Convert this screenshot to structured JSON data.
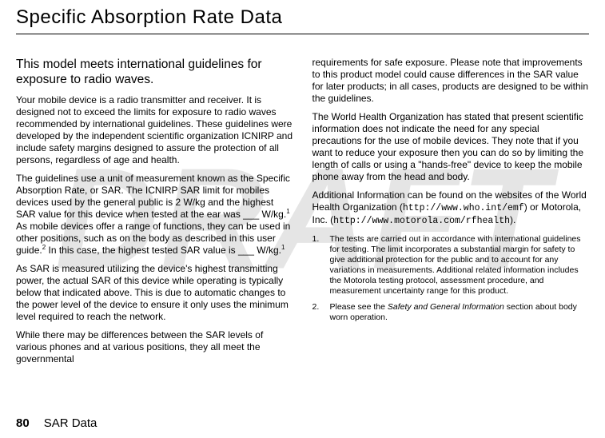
{
  "watermark": "DRAFT",
  "title": "Specific Absorption Rate Data",
  "left": {
    "subhead": "This model meets international guidelines for exposure to radio waves.",
    "p1": "Your mobile device is a radio transmitter and receiver. It is designed not to exceed the limits for exposure to radio waves recommended by international guidelines. These guidelines were developed by the independent scientific organization ICNIRP and include safety margins designed to assure the protection of all persons, regardless of age and health.",
    "p2a": "The guidelines use a unit of measurement known as the Specific Absorption Rate, or SAR. The ICNIRP SAR limit for mobiles devices used by the general public is 2 W/kg and the highest SAR value for this device when tested at the ear was ___ W/kg.",
    "p2b": " As mobile devices offer a range of functions, they can be used in other positions, such as on the body as described in this user guide.",
    "p2c": " In this case, the highest tested SAR value is ___ W/kg.",
    "p3": "As SAR is measured utilizing the device's highest transmitting power, the actual SAR of this device while operating is typically below that indicated above. This is due to automatic changes to the power level of the device to ensure it only uses the minimum level required to reach the network.",
    "p4": "While there may be differences between the SAR levels of various phones and at various positions, they all meet the governmental"
  },
  "right": {
    "p1": "requirements for safe exposure. Please note that improvements to this product model could cause differences in the SAR value for later products; in all cases, products are designed to be within the guidelines.",
    "p2": "The World Health Organization has stated that present scientific information does not indicate the need for any special precautions for the use of mobile devices. They note that if you want to reduce your exposure then you can do so by limiting the length of calls or using a \"hands-free\" device to keep the mobile phone away from the head and body.",
    "p3a": "Additional Information can be found on the websites of the World Health Organization (",
    "url1": "http://www.who.int/emf",
    "p3b": ") or Motorola, Inc. (",
    "url2": "http://www.motorola.com/rfhealth",
    "p3c": ").",
    "fn1": "The tests are carried out in accordance with international guidelines for testing. The limit incorporates a substantial margin for safety to give additional protection for the public and to account for any variations in measurements. Additional related information includes the Motorola testing protocol, assessment procedure, and measurement uncertainty range for this product.",
    "fn2a": "Please see the ",
    "fn2italic": "Safety and General Information",
    "fn2b": " section about body worn operation."
  },
  "footer": {
    "pagenum": "80",
    "label": "SAR Data"
  }
}
